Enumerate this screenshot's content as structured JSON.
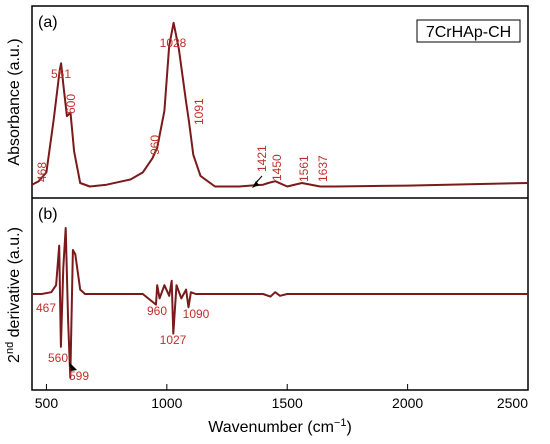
{
  "chart_data": {
    "type": "line",
    "xlabel_main": "Wavenumber (cm",
    "xlabel_sup": "−1",
    "xlabel_close": ")",
    "xlim": [
      440,
      2500
    ],
    "x_ticks": [
      500,
      1000,
      1500,
      2000,
      2500
    ],
    "line_color": "#7a1a1a",
    "label_color": "#c0302a",
    "legend": "7CrHAp-CH",
    "panels": [
      {
        "tag": "(a)",
        "ylabel": "Absorbance (a.u.)",
        "ylim": [
          0,
          1.0
        ],
        "series": {
          "x": [
            440,
            468,
            500,
            530,
            555,
            561,
            570,
            585,
            600,
            615,
            640,
            680,
            750,
            850,
            900,
            940,
            960,
            990,
            1010,
            1028,
            1050,
            1080,
            1091,
            1110,
            1140,
            1200,
            1300,
            1400,
            1421,
            1450,
            1500,
            1561,
            1637,
            1700,
            2000,
            2500
          ],
          "y": [
            0.03,
            0.05,
            0.1,
            0.4,
            0.68,
            0.72,
            0.6,
            0.42,
            0.44,
            0.22,
            0.04,
            0.02,
            0.03,
            0.06,
            0.1,
            0.18,
            0.24,
            0.45,
            0.82,
            0.95,
            0.8,
            0.5,
            0.4,
            0.2,
            0.08,
            0.02,
            0.02,
            0.03,
            0.04,
            0.05,
            0.02,
            0.04,
            0.02,
            0.02,
            0.025,
            0.04
          ]
        },
        "peak_labels": [
          "468",
          "561",
          "600",
          "960",
          "1028",
          "1091",
          "1421",
          "1450",
          "1561",
          "1637"
        ]
      },
      {
        "tag": "(b)",
        "ylabel": "2nd derivative (a.u.)",
        "ylabel_main_a": "2",
        "ylabel_sup": "nd",
        "ylabel_main_b": " derivative (a.u.)",
        "ylim": [
          -1.0,
          1.0
        ],
        "series": {
          "x": [
            440,
            480,
            520,
            540,
            553,
            560,
            570,
            580,
            590,
            599,
            610,
            620,
            640,
            660,
            700,
            900,
            955,
            960,
            970,
            990,
            1010,
            1020,
            1027,
            1040,
            1060,
            1080,
            1090,
            1100,
            1120,
            1200,
            1400,
            1430,
            1450,
            1470,
            1500,
            2000,
            2500
          ],
          "y": [
            0,
            0,
            0.02,
            0.1,
            0.55,
            -0.6,
            0.3,
            0.75,
            -0.3,
            -0.95,
            0.5,
            0.45,
            0.05,
            0,
            0,
            0,
            -0.12,
            0.1,
            -0.05,
            0.1,
            -0.02,
            0.15,
            -0.45,
            0.1,
            -0.05,
            0.05,
            -0.15,
            0.02,
            0,
            0,
            0,
            -0.03,
            0.02,
            -0.02,
            0,
            0,
            0
          ]
        },
        "peak_labels": [
          "467",
          "560",
          "599",
          "960",
          "1027",
          "1090"
        ]
      }
    ]
  }
}
